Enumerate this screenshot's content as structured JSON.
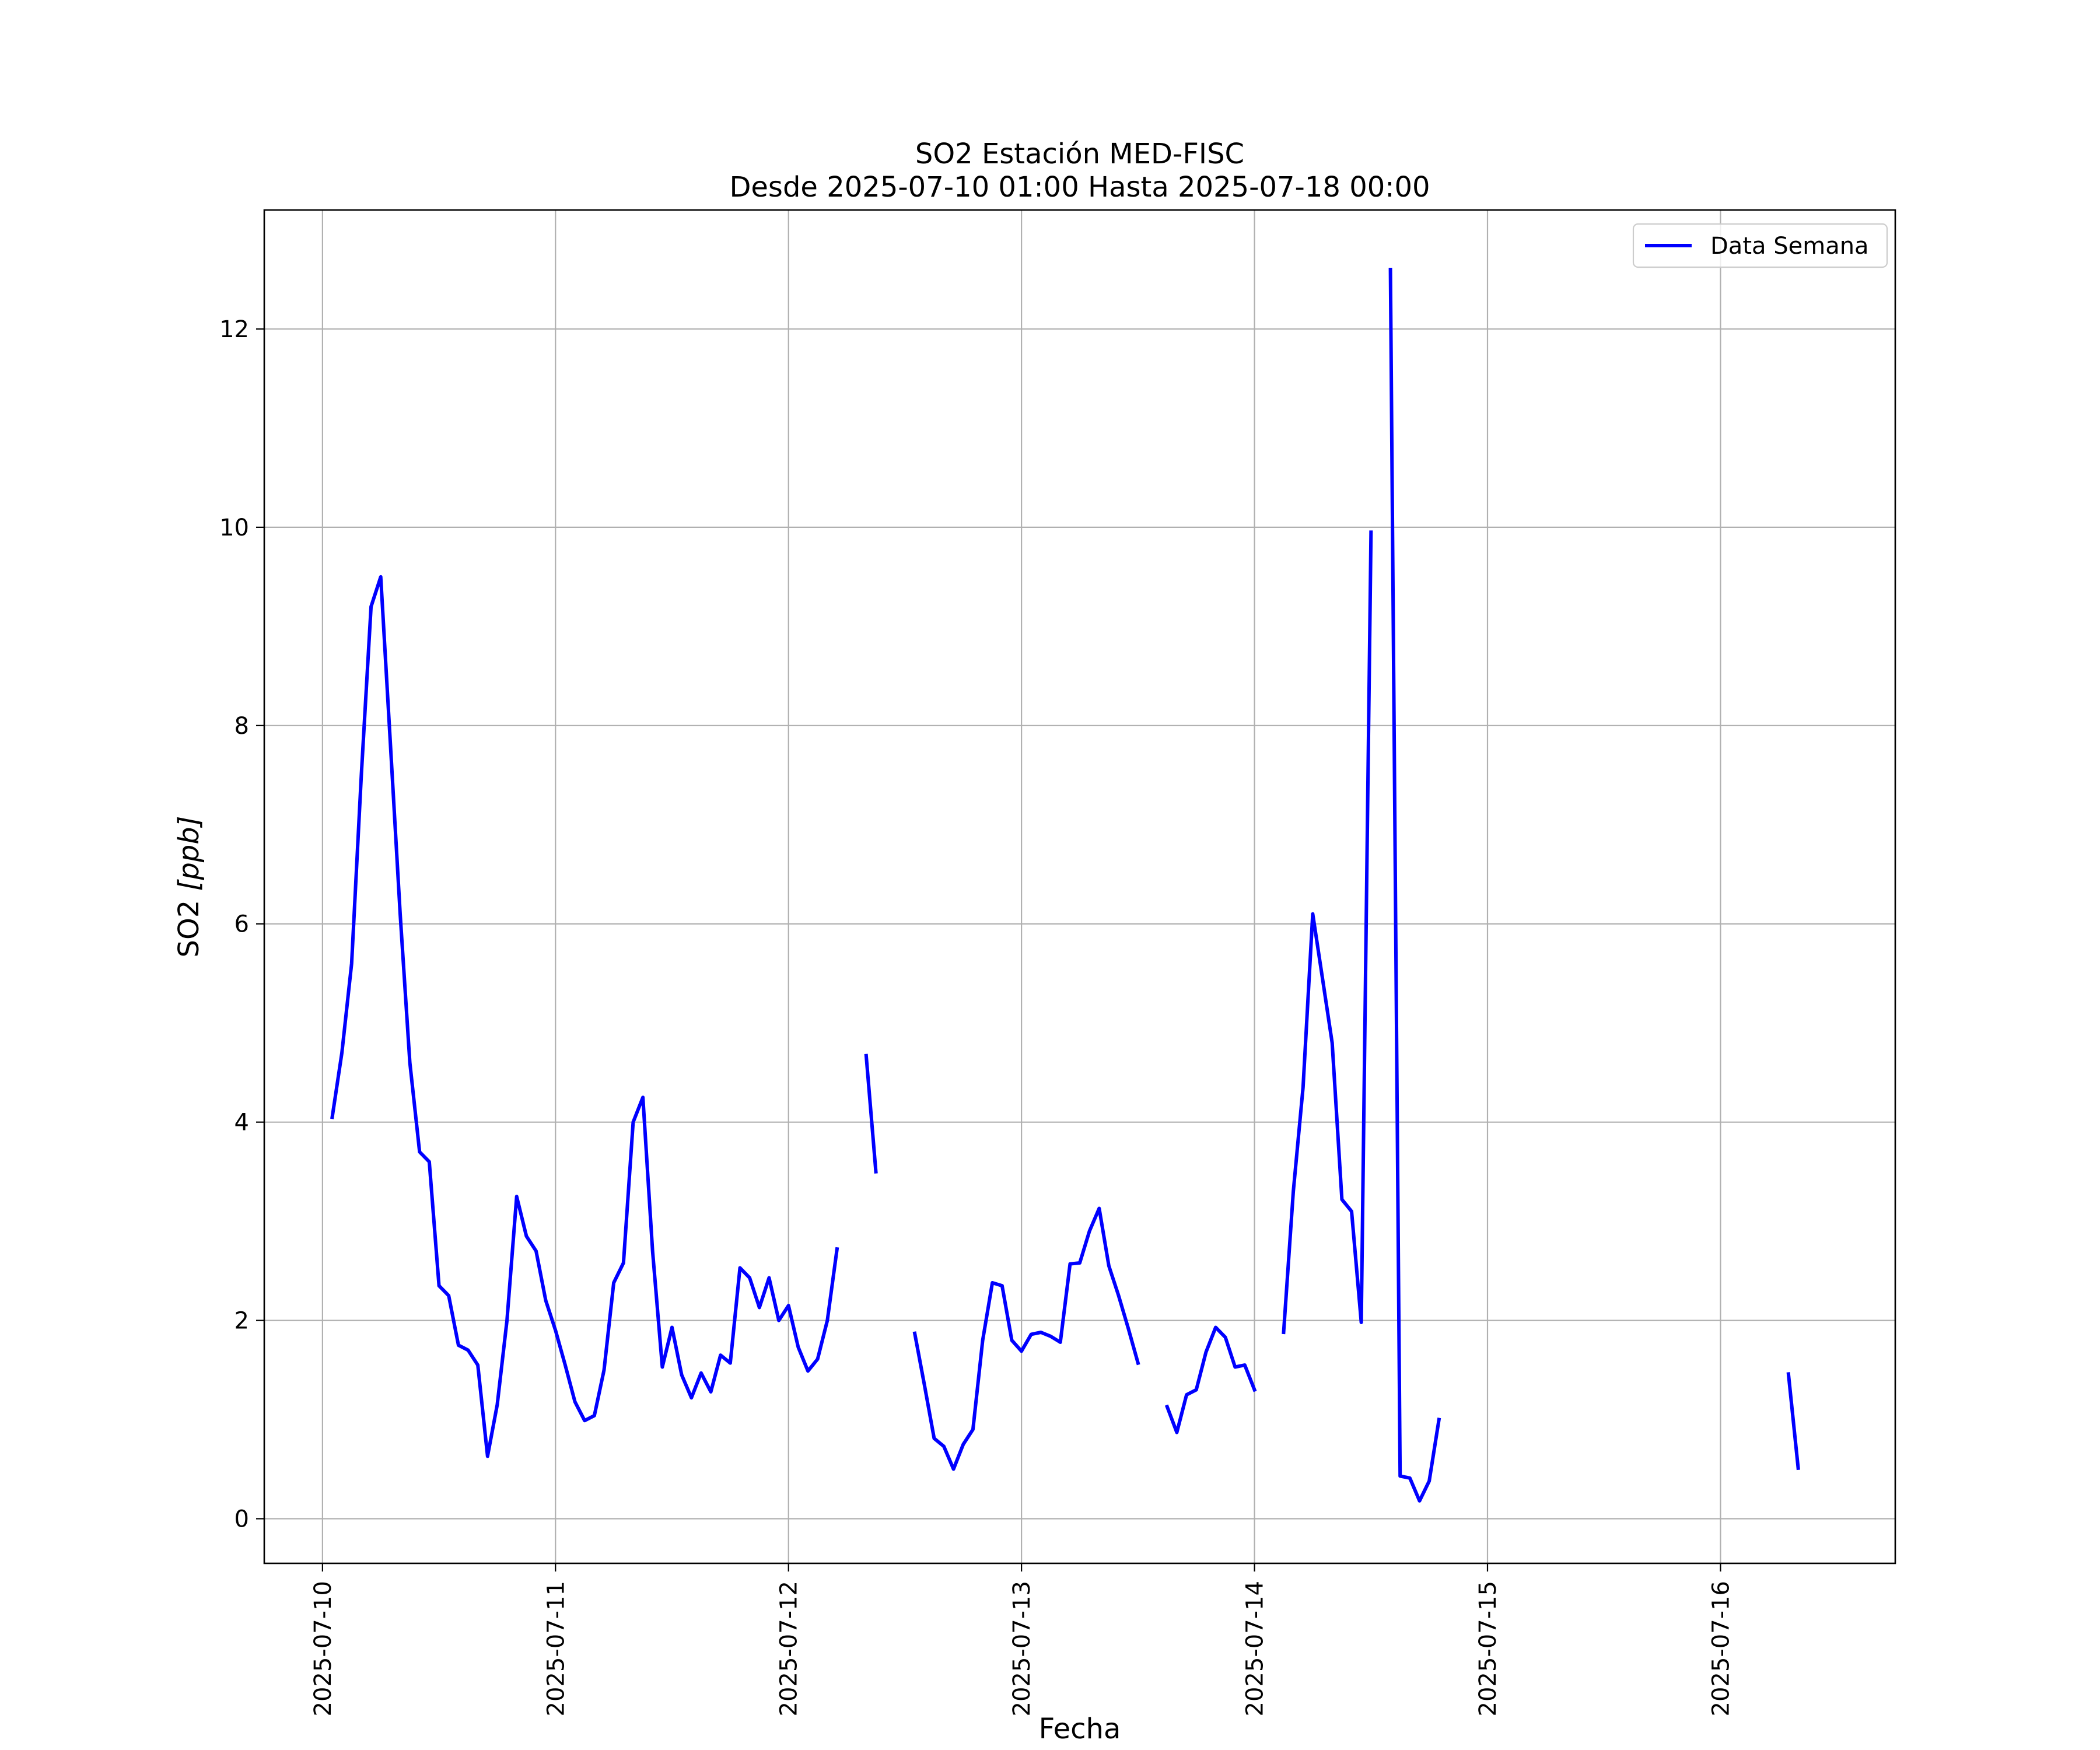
{
  "chart_data": {
    "type": "line",
    "title": "SO2 Estación MED-FISC",
    "subtitle": "Desde 2025-07-10 01:00 Hasta 2025-07-18 00:00",
    "xlabel": "Fecha",
    "ylabel_main": "SO2 ",
    "ylabel_unit": "[ppb]",
    "xlim": [
      "2025-07-09 18:00",
      "2025-07-16 18:00"
    ],
    "ylim": [
      -0.45,
      13.2
    ],
    "x_ticks": [
      "2025-07-10",
      "2025-07-11",
      "2025-07-12",
      "2025-07-13",
      "2025-07-14",
      "2025-07-15",
      "2025-07-16"
    ],
    "y_ticks": [
      0,
      2,
      4,
      6,
      8,
      10,
      12
    ],
    "y_tick_labels": [
      "0",
      "2",
      "4",
      "6",
      "8",
      "10",
      "12"
    ],
    "grid": true,
    "legend_position": "top-right",
    "series": [
      {
        "name": "Data Semana",
        "color": "#0000ff",
        "segments": [
          [
            [
              "2025-07-10 01:00",
              4.05
            ],
            [
              "2025-07-10 02:00",
              4.7
            ],
            [
              "2025-07-10 03:00",
              5.6
            ],
            [
              "2025-07-10 04:00",
              7.5
            ],
            [
              "2025-07-10 05:00",
              9.2
            ],
            [
              "2025-07-10 06:00",
              9.5
            ],
            [
              "2025-07-10 07:00",
              7.8
            ],
            [
              "2025-07-10 08:00",
              6.1
            ],
            [
              "2025-07-10 09:00",
              4.6
            ],
            [
              "2025-07-10 10:00",
              3.7
            ],
            [
              "2025-07-10 11:00",
              3.6
            ],
            [
              "2025-07-10 12:00",
              2.35
            ],
            [
              "2025-07-10 13:00",
              2.25
            ],
            [
              "2025-07-10 14:00",
              1.75
            ],
            [
              "2025-07-10 15:00",
              1.7
            ],
            [
              "2025-07-10 16:00",
              1.55
            ],
            [
              "2025-07-10 17:00",
              0.63
            ],
            [
              "2025-07-10 18:00",
              1.15
            ],
            [
              "2025-07-10 19:00",
              2.0
            ],
            [
              "2025-07-10 20:00",
              3.25
            ],
            [
              "2025-07-10 21:00",
              2.85
            ],
            [
              "2025-07-10 22:00",
              2.7
            ],
            [
              "2025-07-10 23:00",
              2.2
            ],
            [
              "2025-07-11 00:00",
              1.9
            ],
            [
              "2025-07-11 01:00",
              1.55
            ],
            [
              "2025-07-11 02:00",
              1.18
            ],
            [
              "2025-07-11 03:00",
              0.99
            ],
            [
              "2025-07-11 04:00",
              1.04
            ],
            [
              "2025-07-11 05:00",
              1.5
            ],
            [
              "2025-07-11 06:00",
              2.38
            ],
            [
              "2025-07-11 07:00",
              2.58
            ],
            [
              "2025-07-11 08:00",
              4.0
            ],
            [
              "2025-07-11 09:00",
              4.25
            ],
            [
              "2025-07-11 10:00",
              2.7
            ],
            [
              "2025-07-11 11:00",
              1.53
            ],
            [
              "2025-07-11 12:00",
              1.93
            ],
            [
              "2025-07-11 13:00",
              1.45
            ],
            [
              "2025-07-11 14:00",
              1.22
            ],
            [
              "2025-07-11 15:00",
              1.47
            ],
            [
              "2025-07-11 16:00",
              1.28
            ],
            [
              "2025-07-11 17:00",
              1.65
            ],
            [
              "2025-07-11 18:00",
              1.57
            ],
            [
              "2025-07-11 19:00",
              2.53
            ],
            [
              "2025-07-11 20:00",
              2.43
            ],
            [
              "2025-07-11 21:00",
              2.13
            ],
            [
              "2025-07-11 22:00",
              2.43
            ],
            [
              "2025-07-11 23:00",
              2.0
            ],
            [
              "2025-07-12 00:00",
              2.15
            ],
            [
              "2025-07-12 01:00",
              1.73
            ],
            [
              "2025-07-12 02:00",
              1.49
            ],
            [
              "2025-07-12 03:00",
              1.61
            ],
            [
              "2025-07-12 04:00",
              2.0
            ],
            [
              "2025-07-12 05:00",
              2.72
            ]
          ],
          [
            [
              "2025-07-12 08:00",
              4.67
            ],
            [
              "2025-07-12 09:00",
              3.5
            ]
          ],
          [
            [
              "2025-07-12 13:00",
              1.87
            ],
            [
              "2025-07-12 14:00",
              1.35
            ],
            [
              "2025-07-12 15:00",
              0.81
            ],
            [
              "2025-07-12 16:00",
              0.73
            ],
            [
              "2025-07-12 17:00",
              0.5
            ],
            [
              "2025-07-12 18:00",
              0.75
            ],
            [
              "2025-07-12 19:00",
              0.9
            ],
            [
              "2025-07-12 20:00",
              1.8
            ],
            [
              "2025-07-12 21:00",
              2.38
            ],
            [
              "2025-07-12 22:00",
              2.35
            ],
            [
              "2025-07-12 23:00",
              1.8
            ],
            [
              "2025-07-13 00:00",
              1.69
            ],
            [
              "2025-07-13 01:00",
              1.86
            ],
            [
              "2025-07-13 02:00",
              1.88
            ],
            [
              "2025-07-13 03:00",
              1.84
            ],
            [
              "2025-07-13 04:00",
              1.78
            ],
            [
              "2025-07-13 05:00",
              2.57
            ],
            [
              "2025-07-13 06:00",
              2.58
            ],
            [
              "2025-07-13 07:00",
              2.9
            ],
            [
              "2025-07-13 08:00",
              3.13
            ],
            [
              "2025-07-13 09:00",
              2.55
            ],
            [
              "2025-07-13 10:00",
              2.25
            ],
            [
              "2025-07-13 11:00",
              1.92
            ],
            [
              "2025-07-13 12:00",
              1.57
            ]
          ],
          [
            [
              "2025-07-13 15:00",
              1.13
            ],
            [
              "2025-07-13 16:00",
              0.87
            ],
            [
              "2025-07-13 17:00",
              1.25
            ],
            [
              "2025-07-13 18:00",
              1.3
            ],
            [
              "2025-07-13 19:00",
              1.68
            ],
            [
              "2025-07-13 20:00",
              1.93
            ],
            [
              "2025-07-13 21:00",
              1.83
            ],
            [
              "2025-07-13 22:00",
              1.53
            ],
            [
              "2025-07-13 23:00",
              1.55
            ],
            [
              "2025-07-14 00:00",
              1.3
            ]
          ],
          [
            [
              "2025-07-14 03:00",
              1.88
            ],
            [
              "2025-07-14 04:00",
              3.3
            ],
            [
              "2025-07-14 05:00",
              4.35
            ],
            [
              "2025-07-14 06:00",
              6.1
            ],
            [
              "2025-07-14 07:00",
              5.45
            ],
            [
              "2025-07-14 08:00",
              4.8
            ],
            [
              "2025-07-14 09:00",
              3.22
            ],
            [
              "2025-07-14 10:00",
              3.1
            ],
            [
              "2025-07-14 11:00",
              1.98
            ],
            [
              "2025-07-14 12:00",
              9.95
            ]
          ],
          [
            [
              "2025-07-14 14:00",
              12.6
            ],
            [
              "2025-07-14 15:00",
              0.43
            ],
            [
              "2025-07-14 16:00",
              0.41
            ],
            [
              "2025-07-14 17:00",
              0.18
            ],
            [
              "2025-07-14 18:00",
              0.38
            ],
            [
              "2025-07-14 19:00",
              1.0
            ]
          ],
          [
            [
              "2025-07-16 07:00",
              1.46
            ],
            [
              "2025-07-16 08:00",
              0.51
            ]
          ]
        ]
      }
    ]
  }
}
